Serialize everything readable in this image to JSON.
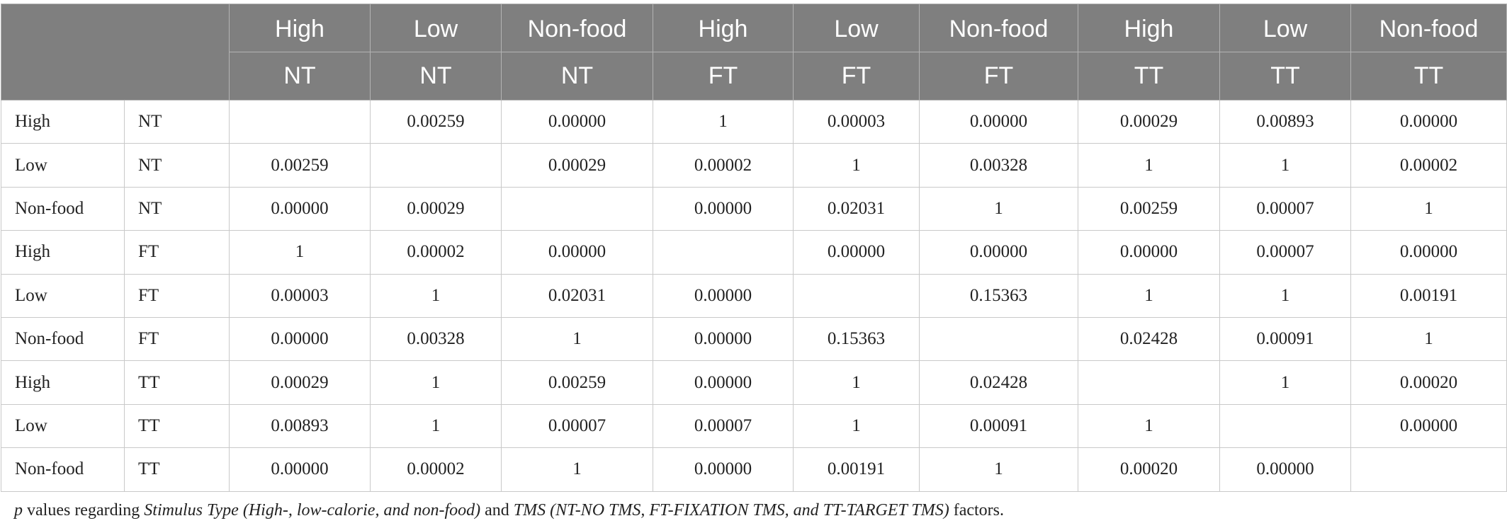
{
  "column_headers": [
    {
      "stimulus": "High",
      "tms": "NT"
    },
    {
      "stimulus": "Low",
      "tms": "NT"
    },
    {
      "stimulus": "Non-food",
      "tms": "NT"
    },
    {
      "stimulus": "High",
      "tms": "FT"
    },
    {
      "stimulus": "Low",
      "tms": "FT"
    },
    {
      "stimulus": "Non-food",
      "tms": "FT"
    },
    {
      "stimulus": "High",
      "tms": "TT"
    },
    {
      "stimulus": "Low",
      "tms": "TT"
    },
    {
      "stimulus": "Non-food",
      "tms": "TT"
    }
  ],
  "rows": [
    {
      "stimulus": "High",
      "tms": "NT",
      "values": [
        "",
        "0.00259",
        "0.00000",
        "1",
        "0.00003",
        "0.00000",
        "0.00029",
        "0.00893",
        "0.00000"
      ]
    },
    {
      "stimulus": "Low",
      "tms": "NT",
      "values": [
        "0.00259",
        "",
        "0.00029",
        "0.00002",
        "1",
        "0.00328",
        "1",
        "1",
        "0.00002"
      ]
    },
    {
      "stimulus": "Non-food",
      "tms": "NT",
      "values": [
        "0.00000",
        "0.00029",
        "",
        "0.00000",
        "0.02031",
        "1",
        "0.00259",
        "0.00007",
        "1"
      ]
    },
    {
      "stimulus": "High",
      "tms": "FT",
      "values": [
        "1",
        "0.00002",
        "0.00000",
        "",
        "0.00000",
        "0.00000",
        "0.00000",
        "0.00007",
        "0.00000"
      ]
    },
    {
      "stimulus": "Low",
      "tms": "FT",
      "values": [
        "0.00003",
        "1",
        "0.02031",
        "0.00000",
        "",
        "0.15363",
        "1",
        "1",
        "0.00191"
      ]
    },
    {
      "stimulus": "Non-food",
      "tms": "FT",
      "values": [
        "0.00000",
        "0.00328",
        "1",
        "0.00000",
        "0.15363",
        "",
        "0.02428",
        "0.00091",
        "1"
      ]
    },
    {
      "stimulus": "High",
      "tms": "TT",
      "values": [
        "0.00029",
        "1",
        "0.00259",
        "0.00000",
        "1",
        "0.02428",
        "",
        "1",
        "0.00020"
      ]
    },
    {
      "stimulus": "Low",
      "tms": "TT",
      "values": [
        "0.00893",
        "1",
        "0.00007",
        "0.00007",
        "1",
        "0.00091",
        "1",
        "",
        "0.00000"
      ]
    },
    {
      "stimulus": "Non-food",
      "tms": "TT",
      "values": [
        "0.00000",
        "0.00002",
        "1",
        "0.00000",
        "0.00191",
        "1",
        "0.00020",
        "0.00000",
        ""
      ]
    }
  ],
  "footnote": {
    "p": "p",
    "t1": " values regarding ",
    "stimulus_type": "Stimulus Type (High-, low-calorie, and non-food)",
    "t2": " and ",
    "tms": "TMS (NT-NO TMS, FT-FIXATION TMS, and TT-TARGET TMS)",
    "t3": " factors."
  },
  "colors": {
    "header_bg": "#7f7f7f",
    "header_text": "#ffffff",
    "grid": "#c9c9c9"
  }
}
